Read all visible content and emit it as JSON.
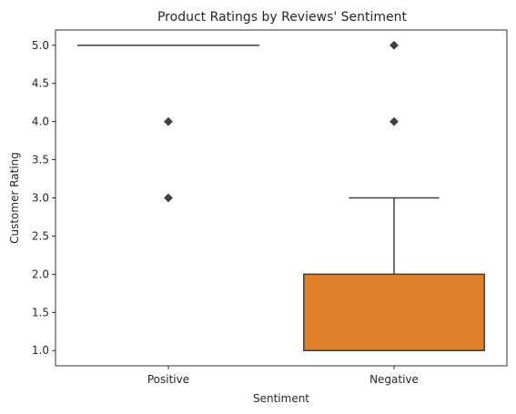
{
  "chart_data": {
    "type": "box",
    "title": "Product Ratings by Reviews' Sentiment",
    "xlabel": "Sentiment",
    "ylabel": "Customer Rating",
    "ylim": [
      0.8,
      5.2
    ],
    "yticks": [
      "1.0",
      "1.5",
      "2.0",
      "2.5",
      "3.0",
      "3.5",
      "4.0",
      "4.5",
      "5.0"
    ],
    "grid": false,
    "categories": [
      "Positive",
      "Negative"
    ],
    "boxes": [
      {
        "name": "Positive",
        "color": "#3274a1",
        "q1": 5.0,
        "median": 5.0,
        "q3": 5.0,
        "whisker_low": 5.0,
        "whisker_high": 5.0,
        "outliers": [
          4.0,
          3.0
        ]
      },
      {
        "name": "Negative",
        "color": "#e1812c",
        "q1": 1.0,
        "median": 1.0,
        "q3": 2.0,
        "whisker_low": 1.0,
        "whisker_high": 3.0,
        "outliers": [
          4.0,
          5.0
        ]
      }
    ]
  }
}
